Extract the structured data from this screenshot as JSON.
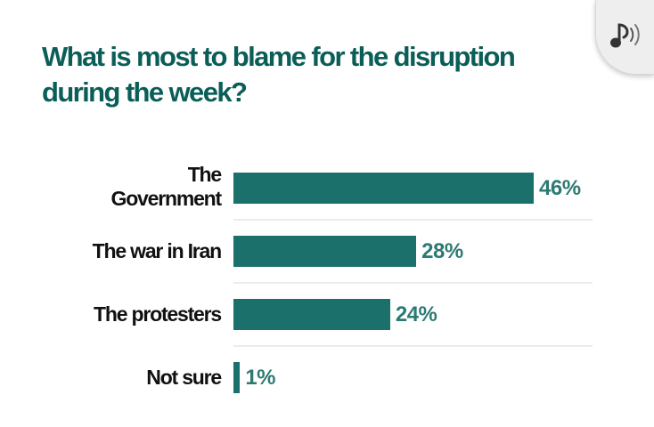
{
  "audio_button": {
    "icon": "music-note-sound-icon"
  },
  "chart_data": {
    "type": "bar",
    "orientation": "horizontal",
    "title": "What is most to blame for the disruption during the week?",
    "categories": [
      "The Government",
      "The war in Iran",
      "The protesters",
      "Not sure"
    ],
    "values": [
      46,
      28,
      24,
      1
    ],
    "value_labels": [
      "46%",
      "28%",
      "24%",
      "1%"
    ],
    "unit": "%",
    "xlim": [
      0,
      55
    ],
    "xlabel": "",
    "ylabel": "",
    "grid": false,
    "colors": {
      "bar": "#1c706b",
      "value_label": "#2c7a72",
      "title": "#0b5e58",
      "divider": "#ececec"
    }
  }
}
